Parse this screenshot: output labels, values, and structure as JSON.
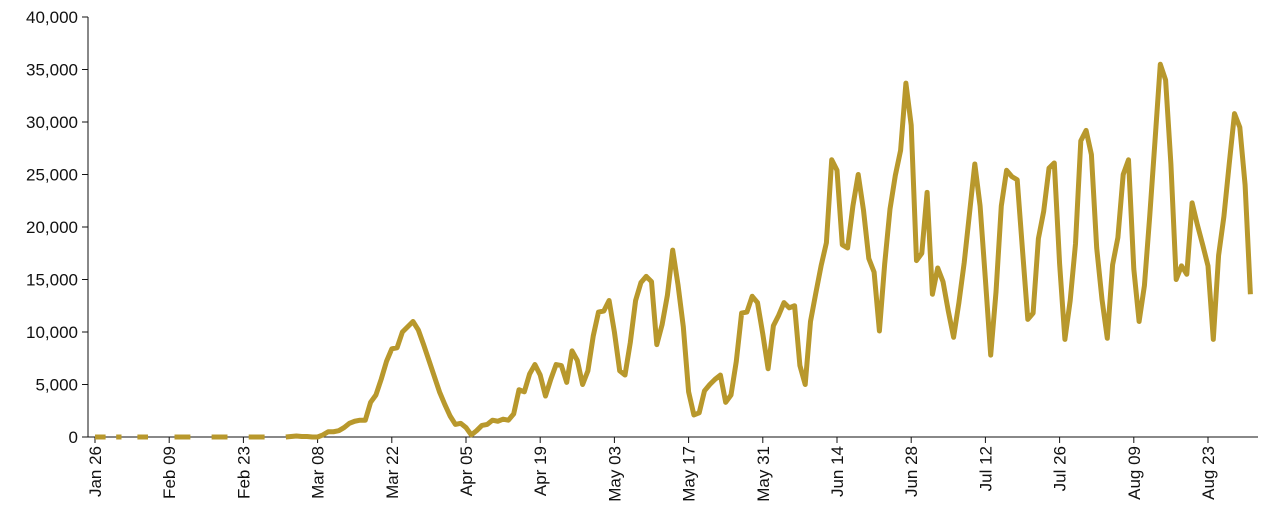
{
  "chart_data": {
    "type": "line",
    "color": "#b8982c",
    "grid": false,
    "categories": [
      "Jan 26",
      null,
      null,
      null,
      null,
      null,
      null,
      null,
      null,
      null,
      null,
      null,
      null,
      null,
      "Feb 09",
      null,
      null,
      null,
      null,
      null,
      null,
      null,
      null,
      null,
      null,
      null,
      null,
      null,
      "Feb 23",
      null,
      null,
      null,
      null,
      null,
      null,
      null,
      null,
      null,
      null,
      null,
      null,
      null,
      "Mar 08",
      null,
      null,
      null,
      null,
      null,
      null,
      null,
      null,
      null,
      null,
      null,
      null,
      null,
      "Mar 22",
      null,
      null,
      null,
      null,
      null,
      null,
      null,
      null,
      null,
      null,
      null,
      null,
      null,
      "Apr 05",
      null,
      null,
      null,
      null,
      null,
      null,
      null,
      null,
      null,
      null,
      null,
      null,
      null,
      "Apr 19",
      null,
      null,
      null,
      null,
      null,
      null,
      null,
      null,
      null,
      null,
      null,
      null,
      null,
      "May 03",
      null,
      null,
      null,
      null,
      null,
      null,
      null,
      null,
      null,
      null,
      null,
      null,
      null,
      "May 17",
      null,
      null,
      null,
      null,
      null,
      null,
      null,
      null,
      null,
      null,
      null,
      null,
      null,
      "May 31",
      null,
      null,
      null,
      null,
      null,
      null,
      null,
      null,
      null,
      null,
      null,
      null,
      null,
      "Jun 14",
      null,
      null,
      null,
      null,
      null,
      null,
      null,
      null,
      null,
      null,
      null,
      null,
      null,
      "Jun 28",
      null,
      null,
      null,
      null,
      null,
      null,
      null,
      null,
      null,
      null,
      null,
      null,
      null,
      "Jul 12",
      null,
      null,
      null,
      null,
      null,
      null,
      null,
      null,
      null,
      null,
      null,
      null,
      null,
      "Jul 26",
      null,
      null,
      null,
      null,
      null,
      null,
      null,
      null,
      null,
      null,
      null,
      null,
      null,
      "Aug 09",
      null,
      null,
      null,
      null,
      null,
      null,
      null,
      null,
      null,
      null,
      null,
      null,
      null,
      "Aug 23",
      null,
      null,
      null,
      null,
      null,
      null,
      null,
      null
    ],
    "values": [
      0,
      0,
      0,
      null,
      0,
      0,
      null,
      null,
      0,
      0,
      0,
      null,
      null,
      null,
      null,
      0,
      0,
      0,
      0,
      null,
      null,
      null,
      0,
      0,
      0,
      0,
      null,
      null,
      null,
      0,
      0,
      0,
      0,
      null,
      null,
      null,
      0,
      50,
      100,
      50,
      50,
      0,
      0,
      200,
      500,
      500,
      600,
      900,
      1300,
      1500,
      1600,
      1600,
      3300,
      4000,
      5500,
      7200,
      8400,
      8500,
      10000,
      10500,
      11000,
      10200,
      8800,
      7300,
      5800,
      4300,
      3100,
      2000,
      1200,
      1300,
      900,
      200,
      600,
      1100,
      1200,
      1600,
      1500,
      1700,
      1600,
      2200,
      4500,
      4300,
      6000,
      6900,
      5900,
      3900,
      5500,
      6900,
      6800,
      5200,
      8200,
      7300,
      5000,
      6300,
      9600,
      11900,
      12000,
      13000,
      10000,
      6300,
      5900,
      9000,
      13000,
      14700,
      15300,
      14800,
      8800,
      10700,
      13500,
      17800,
      14500,
      10500,
      4300,
      2100,
      2300,
      4400,
      5000,
      5500,
      5900,
      3300,
      4000,
      7200,
      11800,
      11900,
      13400,
      12800,
      9800,
      6500,
      10600,
      11600,
      12800,
      12300,
      12500,
      6800,
      5000,
      11000,
      13700,
      16300,
      18500,
      26400,
      25400,
      18300,
      18000,
      22000,
      25000,
      21600,
      17000,
      15700,
      10100,
      16500,
      21700,
      24900,
      27300,
      33700,
      29700,
      16800,
      17500,
      23300,
      13600,
      16100,
      14800,
      12000,
      9500,
      12800,
      16600,
      21300,
      26000,
      22000,
      15000,
      7800,
      13800,
      22000,
      25400,
      24800,
      24500,
      17800,
      11200,
      11800,
      18900,
      21500,
      25600,
      26100,
      16500,
      9300,
      13000,
      18400,
      28200,
      29200,
      26900,
      18000,
      13100,
      9400,
      16400,
      19000,
      25000,
      26400,
      16000,
      11000,
      14400,
      21000,
      28200,
      35500,
      34000,
      26000,
      15000,
      16300,
      15500,
      22300,
      20200,
      18300,
      16300,
      9300,
      17300,
      21000,
      26000,
      30800,
      29500,
      24000,
      13600
    ],
    "ylim": [
      0,
      40000
    ],
    "yticks": [
      0,
      {
        "value": 5000,
        "label": "5,000"
      },
      {
        "value": 10000,
        "label": "10,000"
      },
      {
        "value": 15000,
        "label": "15,000"
      },
      {
        "value": 20000,
        "label": "20,000"
      },
      {
        "value": 25000,
        "label": "25,000"
      },
      {
        "value": 30000,
        "label": "30,000"
      },
      {
        "value": 35000,
        "label": "35,000"
      },
      {
        "value": 40000,
        "label": "40,000"
      }
    ]
  }
}
